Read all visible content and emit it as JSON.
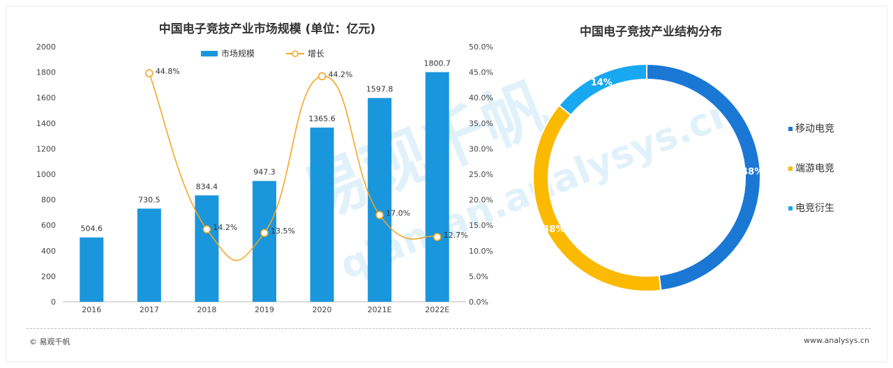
{
  "watermark": "易观千帆",
  "watermark_sub": "qianfan.analysys.cn",
  "chart_data": [
    {
      "type": "bar",
      "title": "中国电子竞技产业市场规模 (单位：亿元)",
      "categories": [
        "2016",
        "2017",
        "2018",
        "2019",
        "2020",
        "2021E",
        "2022E"
      ],
      "ylim": [
        0,
        2000
      ],
      "yticks": [
        "0",
        "200",
        "400",
        "600",
        "800",
        "1000",
        "1200",
        "1400",
        "1600",
        "1800",
        "2000"
      ],
      "y2lim": [
        0,
        50
      ],
      "y2ticks": [
        "0.0%",
        "5.0%",
        "10.0%",
        "15.0%",
        "20.0%",
        "25.0%",
        "30.0%",
        "35.0%",
        "40.0%",
        "45.0%",
        "50.0%"
      ],
      "legend_position": "top",
      "series": [
        {
          "name": "市场规模",
          "type": "bar",
          "color": "#1a96dc",
          "values": [
            504.6,
            730.5,
            834.4,
            947.3,
            1365.6,
            1597.8,
            1800.7
          ],
          "labels": [
            "504.6",
            "730.5",
            "834.4",
            "947.3",
            "1365.6",
            "1597.8",
            "1800.7"
          ]
        },
        {
          "name": "增长",
          "type": "line",
          "axis": "right",
          "color": "#f5a623",
          "values": [
            null,
            44.8,
            14.2,
            13.5,
            44.2,
            17.0,
            12.7
          ],
          "labels": [
            "",
            "44.8%",
            "14.2%",
            "13.5%",
            "44.2%",
            "17.0%",
            "12.7%"
          ]
        }
      ]
    },
    {
      "type": "pie",
      "title": "中国电子竞技产业结构分布",
      "legend_position": "right",
      "slices": [
        {
          "name": "移动电竞",
          "value": 48,
          "label": "48%",
          "color": "#1a78d4"
        },
        {
          "name": "端游电竞",
          "value": 38,
          "label": "38%",
          "color": "#fbb900"
        },
        {
          "name": "电竞衍生",
          "value": 14,
          "label": "14%",
          "color": "#17a8f0"
        }
      ]
    }
  ],
  "footer": {
    "left": "© 易观千帆",
    "right": "www.analysys.cn"
  }
}
